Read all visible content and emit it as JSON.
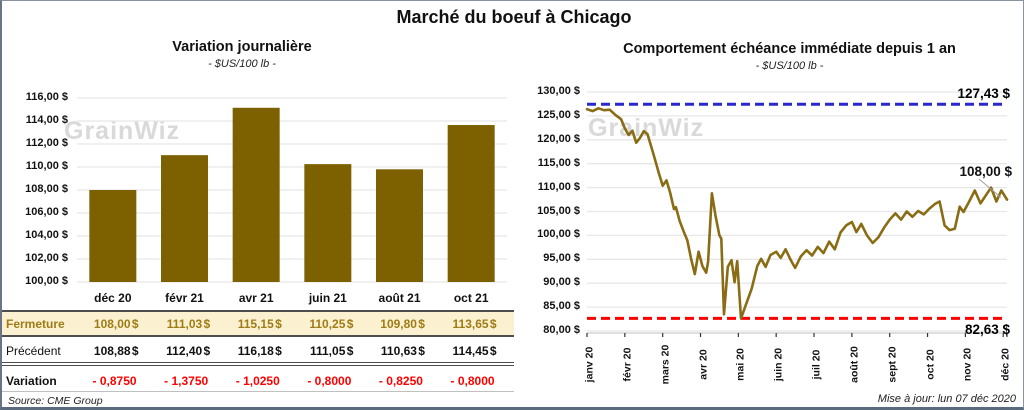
{
  "page": {
    "title": "Marché du boeuf à Chicago",
    "source_note": "Source: CME Group",
    "updated_note": "Mise à jour: lun 07 déc 2020",
    "watermark": "GrainWiz"
  },
  "colors": {
    "bar": "#7d6000",
    "line": "#8a6c14",
    "grid": "#e7e7e7",
    "axis": "#bfbfbf",
    "tick": "#333333",
    "blue_ref": "#2828cc",
    "red_ref": "#ff0000",
    "gold_text": "#9e7c16",
    "gold_bg": "#fbf0cf",
    "leader": "#a0a0a0"
  },
  "table": {
    "rows": [
      {
        "label": "Fermeture",
        "style": "gold",
        "suffix": "$",
        "values": [
          "108,00",
          "111,03",
          "115,15",
          "110,25",
          "109,80",
          "113,65"
        ]
      },
      {
        "label": "Précédent",
        "style": "black",
        "suffix": "$",
        "values": [
          "108,88",
          "112,40",
          "116,18",
          "111,05",
          "110,63",
          "114,45"
        ]
      },
      {
        "label": "Variation",
        "style": "red",
        "suffix": "",
        "values": [
          "- 0,8750",
          "- 1,3750",
          "- 1,0250",
          "- 0,8000",
          "- 0,8250",
          "- 0,8000"
        ]
      }
    ]
  },
  "chart_data": [
    {
      "type": "bar",
      "title": "Variation journalière",
      "subtitle": "- $US/100 lb -",
      "categories": [
        "déc 20",
        "févr 21",
        "avr 21",
        "juin 21",
        "août 21",
        "oct 21"
      ],
      "values": [
        108.0,
        111.03,
        115.15,
        110.25,
        109.8,
        113.65
      ],
      "ylabel": "",
      "xlabel": "",
      "ylim": [
        100,
        116
      ],
      "ytick_step": 2,
      "grid": true,
      "legend": "none"
    },
    {
      "type": "line",
      "title": "Comportement échéance immédiate depuis 1 an",
      "subtitle": "- $US/100 lb -",
      "x_tick_labels": [
        "janv 20",
        "févr 20",
        "mars 20",
        "avr 20",
        "mai 20",
        "juin 20",
        "juil 20",
        "août 20",
        "sept 20",
        "oct 20",
        "nov 20",
        "déc 20"
      ],
      "x_range_months": [
        0,
        11.1
      ],
      "ylim": [
        80,
        130
      ],
      "ytick_step": 5,
      "grid": true,
      "legend": "none",
      "reference_lines": [
        {
          "value": 127.43,
          "label": "127,43 $",
          "color": "#2828cc",
          "style": "dashed",
          "position": "top"
        },
        {
          "value": 82.63,
          "label": "82,63 $",
          "color": "#ff0000",
          "style": "dashed",
          "position": "bottom"
        }
      ],
      "last_value": 108.0,
      "last_value_label": "108,00 $",
      "points": [
        [
          0.0,
          126.4
        ],
        [
          0.15,
          126.0
        ],
        [
          0.3,
          126.6
        ],
        [
          0.45,
          126.2
        ],
        [
          0.6,
          126.3
        ],
        [
          0.75,
          125.2
        ],
        [
          0.9,
          124.3
        ],
        [
          1.0,
          122.4
        ],
        [
          1.1,
          121.0
        ],
        [
          1.2,
          121.9
        ],
        [
          1.3,
          119.4
        ],
        [
          1.4,
          120.4
        ],
        [
          1.5,
          121.8
        ],
        [
          1.6,
          121.2
        ],
        [
          1.75,
          117.2
        ],
        [
          1.9,
          113.0
        ],
        [
          2.0,
          110.4
        ],
        [
          2.1,
          111.5
        ],
        [
          2.2,
          108.9
        ],
        [
          2.3,
          105.5
        ],
        [
          2.35,
          105.9
        ],
        [
          2.45,
          103.0
        ],
        [
          2.55,
          100.9
        ],
        [
          2.65,
          99.0
        ],
        [
          2.75,
          95.1
        ],
        [
          2.85,
          91.9
        ],
        [
          2.95,
          96.6
        ],
        [
          3.05,
          93.6
        ],
        [
          3.15,
          92.2
        ],
        [
          3.2,
          94.5
        ],
        [
          3.3,
          108.8
        ],
        [
          3.4,
          104.0
        ],
        [
          3.5,
          100.0
        ],
        [
          3.55,
          99.3
        ],
        [
          3.62,
          83.5
        ],
        [
          3.72,
          93.4
        ],
        [
          3.82,
          94.8
        ],
        [
          3.9,
          90.2
        ],
        [
          3.97,
          94.6
        ],
        [
          4.07,
          82.6
        ],
        [
          4.2,
          85.5
        ],
        [
          4.35,
          88.8
        ],
        [
          4.5,
          93.6
        ],
        [
          4.6,
          95.1
        ],
        [
          4.72,
          93.4
        ],
        [
          4.85,
          95.9
        ],
        [
          5.0,
          96.6
        ],
        [
          5.12,
          95.3
        ],
        [
          5.25,
          97.1
        ],
        [
          5.38,
          94.9
        ],
        [
          5.5,
          93.2
        ],
        [
          5.65,
          95.6
        ],
        [
          5.8,
          96.9
        ],
        [
          5.95,
          95.8
        ],
        [
          6.1,
          97.6
        ],
        [
          6.25,
          96.3
        ],
        [
          6.4,
          98.7
        ],
        [
          6.55,
          97.1
        ],
        [
          6.7,
          100.6
        ],
        [
          6.85,
          102.1
        ],
        [
          7.0,
          102.8
        ],
        [
          7.12,
          100.7
        ],
        [
          7.25,
          102.4
        ],
        [
          7.4,
          100.0
        ],
        [
          7.55,
          98.4
        ],
        [
          7.7,
          99.6
        ],
        [
          7.85,
          101.6
        ],
        [
          8.0,
          103.3
        ],
        [
          8.15,
          104.6
        ],
        [
          8.3,
          103.3
        ],
        [
          8.45,
          105.0
        ],
        [
          8.6,
          103.9
        ],
        [
          8.75,
          105.1
        ],
        [
          8.9,
          104.4
        ],
        [
          9.05,
          105.6
        ],
        [
          9.2,
          106.6
        ],
        [
          9.32,
          107.1
        ],
        [
          9.45,
          102.1
        ],
        [
          9.58,
          101.1
        ],
        [
          9.72,
          101.4
        ],
        [
          9.85,
          106.0
        ],
        [
          9.95,
          104.9
        ],
        [
          10.1,
          107.1
        ],
        [
          10.25,
          109.4
        ],
        [
          10.4,
          106.7
        ],
        [
          10.55,
          108.5
        ],
        [
          10.68,
          110.0
        ],
        [
          10.82,
          107.1
        ],
        [
          10.95,
          109.4
        ],
        [
          11.1,
          107.5
        ]
      ]
    }
  ]
}
